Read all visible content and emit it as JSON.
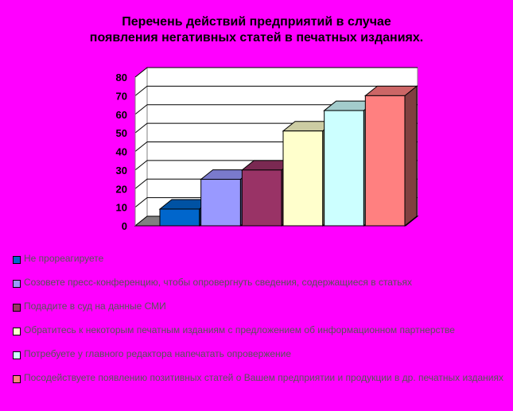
{
  "chart_data": {
    "type": "bar",
    "title_lines": [
      "Перечень действий предприятий в случае",
      "появления негативных статей в печатных изданиях."
    ],
    "categories": [
      "Не прореагируете",
      "Созовете пресс-конференцию, чтобы опровергнуть сведения, содержащиеся в статьях",
      "Подадите в суд на данные СМИ",
      "Обратитесь к некоторым печатным изданиям с предложением об информационном партнерстве",
      "Потребуете у главного редактора напечатать опровержение",
      "Посодействуете появлению позитивных статей о Вашем предприятии и продукции в др. печатных изданиях"
    ],
    "values": [
      9,
      25,
      30,
      51,
      62,
      70
    ],
    "colors": [
      "#0066CC",
      "#9999FF",
      "#993366",
      "#FFFFCC",
      "#CCFFFF",
      "#FF8080"
    ],
    "y_ticks": [
      "0",
      "10",
      "20",
      "30",
      "40",
      "50",
      "60",
      "70",
      "80"
    ],
    "ylim": [
      0,
      80
    ],
    "grid": true,
    "legend_position": "bottom",
    "three_d": true
  }
}
